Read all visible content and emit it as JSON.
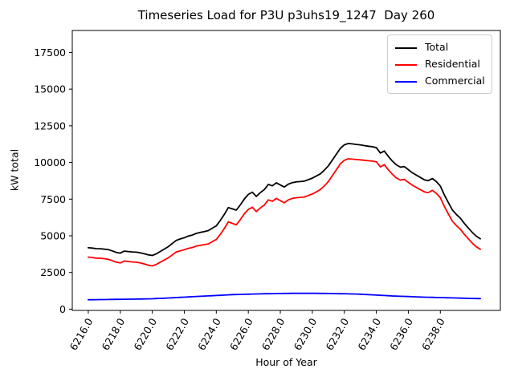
{
  "figure": {
    "background": "#ffffff"
  },
  "chart_data": {
    "type": "line",
    "title": "Timeseries Load for P3U p3uhs19_1247  Day 260",
    "xlabel": "Hour of Year",
    "ylabel": "kW total",
    "legend_position": "upper right",
    "grid": false,
    "xlim": [
      6215.0,
      6241.75
    ],
    "ylim": [
      -85,
      19000
    ],
    "xticks": [
      6216,
      6218,
      6220,
      6222,
      6224,
      6226,
      6228,
      6230,
      6232,
      6234,
      6236,
      6238
    ],
    "yticks": [
      0,
      2500,
      5000,
      7500,
      10000,
      12500,
      15000,
      17500
    ],
    "x": [
      6216.0,
      6216.25,
      6216.5,
      6216.75,
      6217.0,
      6217.25,
      6217.5,
      6217.75,
      6218.0,
      6218.25,
      6218.5,
      6218.75,
      6219.0,
      6219.25,
      6219.5,
      6219.75,
      6220.0,
      6220.25,
      6220.5,
      6220.75,
      6221.0,
      6221.25,
      6221.5,
      6221.75,
      6222.0,
      6222.25,
      6222.5,
      6222.75,
      6223.0,
      6223.25,
      6223.5,
      6223.75,
      6224.0,
      6224.25,
      6224.5,
      6224.75,
      6225.0,
      6225.25,
      6225.5,
      6225.75,
      6226.0,
      6226.25,
      6226.5,
      6226.75,
      6227.0,
      6227.25,
      6227.5,
      6227.75,
      6228.0,
      6228.25,
      6228.5,
      6228.75,
      6229.0,
      6229.25,
      6229.5,
      6229.75,
      6230.0,
      6230.25,
      6230.5,
      6230.75,
      6231.0,
      6231.25,
      6231.5,
      6231.75,
      6232.0,
      6232.25,
      6232.5,
      6232.75,
      6233.0,
      6233.25,
      6233.5,
      6233.75,
      6234.0,
      6234.25,
      6234.5,
      6234.75,
      6235.0,
      6235.25,
      6235.5,
      6235.75,
      6236.0,
      6236.25,
      6236.5,
      6236.75,
      6237.0,
      6237.25,
      6237.5,
      6237.75,
      6238.0,
      6238.25,
      6238.5,
      6238.75,
      6239.0,
      6239.25,
      6239.5,
      6239.75,
      6240.0,
      6240.25,
      6240.5
    ],
    "series": [
      {
        "name": "Total",
        "color": "#000000",
        "values": [
          4190,
          4165,
          4128,
          4122,
          4095,
          4059,
          3973,
          3867,
          3820,
          3954,
          3928,
          3901,
          3885,
          3841,
          3777,
          3704,
          3660,
          3772,
          3935,
          4098,
          4260,
          4475,
          4690,
          4785,
          4870,
          4985,
          5050,
          5165,
          5230,
          5292,
          5355,
          5518,
          5680,
          6045,
          6460,
          6925,
          6840,
          6748,
          7105,
          7513,
          7820,
          7978,
          7685,
          7943,
          8150,
          8505,
          8410,
          8615,
          8470,
          8323,
          8525,
          8628,
          8680,
          8700,
          8730,
          8830,
          8930,
          9078,
          9225,
          9473,
          9770,
          10165,
          10560,
          10955,
          11200,
          11293,
          11265,
          11228,
          11200,
          11155,
          11110,
          11075,
          11010,
          10645,
          10780,
          10415,
          10100,
          9840,
          9680,
          9720,
          9510,
          9300,
          9140,
          8980,
          8820,
          8763,
          8905,
          8698,
          8390,
          7783,
          7275,
          6768,
          6460,
          6203,
          5845,
          5538,
          5230,
          4975,
          4800
        ]
      },
      {
        "name": "Residential",
        "color": "#ff0000",
        "values": [
          3550,
          3520,
          3480,
          3470,
          3440,
          3400,
          3310,
          3200,
          3150,
          3280,
          3250,
          3220,
          3200,
          3150,
          3080,
          3000,
          2950,
          3050,
          3200,
          3350,
          3500,
          3700,
          3900,
          3980,
          4050,
          4150,
          4200,
          4300,
          4350,
          4400,
          4450,
          4600,
          4750,
          5100,
          5500,
          5950,
          5850,
          5750,
          6100,
          6500,
          6800,
          6950,
          6650,
          6900,
          7100,
          7450,
          7350,
          7550,
          7400,
          7250,
          7450,
          7550,
          7600,
          7620,
          7650,
          7750,
          7850,
          8000,
          8150,
          8400,
          8700,
          9100,
          9500,
          9900,
          10150,
          10250,
          10230,
          10200,
          10180,
          10150,
          10120,
          10100,
          10050,
          9700,
          9850,
          9500,
          9200,
          8950,
          8800,
          8850,
          8650,
          8450,
          8300,
          8150,
          8000,
          7950,
          8100,
          7900,
          7600,
          7000,
          6500,
          6000,
          5700,
          5450,
          5100,
          4800,
          4500,
          4250,
          4080
        ]
      },
      {
        "name": "Commercial",
        "color": "#0000ff",
        "values": [
          640,
          645,
          648,
          652,
          655,
          659,
          663,
          667,
          670,
          674,
          678,
          681,
          685,
          691,
          697,
          704,
          710,
          722,
          735,
          748,
          760,
          775,
          790,
          805,
          820,
          835,
          850,
          865,
          880,
          892,
          905,
          918,
          930,
          945,
          960,
          975,
          990,
          998,
          1005,
          1013,
          1020,
          1028,
          1035,
          1043,
          1050,
          1055,
          1060,
          1065,
          1070,
          1073,
          1075,
          1078,
          1080,
          1080,
          1080,
          1080,
          1080,
          1078,
          1075,
          1073,
          1070,
          1065,
          1060,
          1055,
          1050,
          1043,
          1035,
          1028,
          1020,
          1005,
          990,
          975,
          960,
          945,
          930,
          915,
          900,
          890,
          880,
          870,
          860,
          850,
          840,
          830,
          820,
          813,
          805,
          798,
          790,
          783,
          775,
          768,
          760,
          753,
          745,
          738,
          730,
          725,
          720
        ]
      }
    ]
  }
}
